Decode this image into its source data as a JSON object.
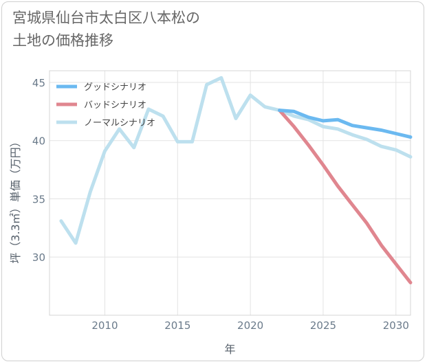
{
  "title": "宮城県仙台市太白区八本松の\n土地の価格推移",
  "chart_data": {
    "type": "line",
    "xlabel": "年",
    "ylabel": "坪（3.3㎡）単価（万円）",
    "xlim": [
      2006.2,
      2031
    ],
    "ylim": [
      25,
      46
    ],
    "x_ticks": [
      2010,
      2015,
      2020,
      2025,
      2030
    ],
    "y_ticks": [
      30,
      35,
      40,
      45
    ],
    "grid": true,
    "legend_position": "top-left",
    "series": [
      {
        "name": "グッドシナリオ",
        "color": "#6bb9f0",
        "x": [
          2022,
          2023,
          2024,
          2025,
          2026,
          2027,
          2028,
          2029,
          2030,
          2031
        ],
        "y": [
          42.6,
          42.5,
          42.0,
          41.7,
          41.8,
          41.3,
          41.1,
          40.9,
          40.6,
          40.3
        ]
      },
      {
        "name": "バッドシナリオ",
        "color": "#e0868f",
        "x": [
          2022,
          2023,
          2024,
          2025,
          2026,
          2027,
          2028,
          2029,
          2030,
          2031
        ],
        "y": [
          42.6,
          41.2,
          39.6,
          37.9,
          36.1,
          34.5,
          32.9,
          31.0,
          29.4,
          27.8
        ]
      },
      {
        "name": "ノーマルシナリオ",
        "color": "#bde0ee",
        "x": [
          2007,
          2008,
          2009,
          2010,
          2011,
          2012,
          2013,
          2014,
          2015,
          2016,
          2017,
          2018,
          2019,
          2020,
          2021,
          2022,
          2023,
          2024,
          2025,
          2026,
          2027,
          2028,
          2029,
          2030,
          2031
        ],
        "y": [
          33.1,
          31.2,
          35.6,
          39.1,
          41.0,
          39.4,
          42.7,
          42.1,
          39.9,
          39.9,
          44.8,
          45.4,
          41.9,
          43.9,
          42.9,
          42.6,
          42.1,
          41.8,
          41.2,
          41.0,
          40.5,
          40.1,
          39.5,
          39.2,
          38.6
        ]
      }
    ]
  }
}
